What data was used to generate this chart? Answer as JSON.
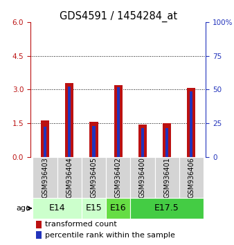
{
  "title": "GDS4591 / 1454284_at",
  "samples": [
    "GSM936403",
    "GSM936404",
    "GSM936405",
    "GSM936402",
    "GSM936400",
    "GSM936401",
    "GSM936406"
  ],
  "red_values": [
    1.62,
    3.3,
    1.57,
    3.2,
    1.45,
    1.5,
    3.07
  ],
  "blue_values_left_scale": [
    1.35,
    3.15,
    1.38,
    3.12,
    1.28,
    1.3,
    2.92
  ],
  "ylim_left": [
    0,
    6
  ],
  "ylim_right": [
    0,
    100
  ],
  "yticks_left": [
    0,
    1.5,
    3.0,
    4.5,
    6
  ],
  "yticks_right": [
    0,
    25,
    50,
    75,
    100
  ],
  "red_color": "#bb1111",
  "blue_color": "#2233bb",
  "red_bar_width": 0.35,
  "blue_bar_width": 0.12,
  "grid_color": "black",
  "title_fontsize": 10.5,
  "tick_fontsize": 7.5,
  "legend_fontsize": 8,
  "age_label_fontsize": 9,
  "sample_label_fontsize": 7,
  "age_groups": [
    {
      "label": "E14",
      "start": 0,
      "end": 1,
      "color": "#ccffcc"
    },
    {
      "label": "E15",
      "start": 2,
      "end": 2,
      "color": "#ccffcc"
    },
    {
      "label": "E16",
      "start": 3,
      "end": 3,
      "color": "#66dd44"
    },
    {
      "label": "E17.5",
      "start": 4,
      "end": 6,
      "color": "#44cc44"
    }
  ],
  "plot_bg": "white",
  "fig_bg": "white"
}
